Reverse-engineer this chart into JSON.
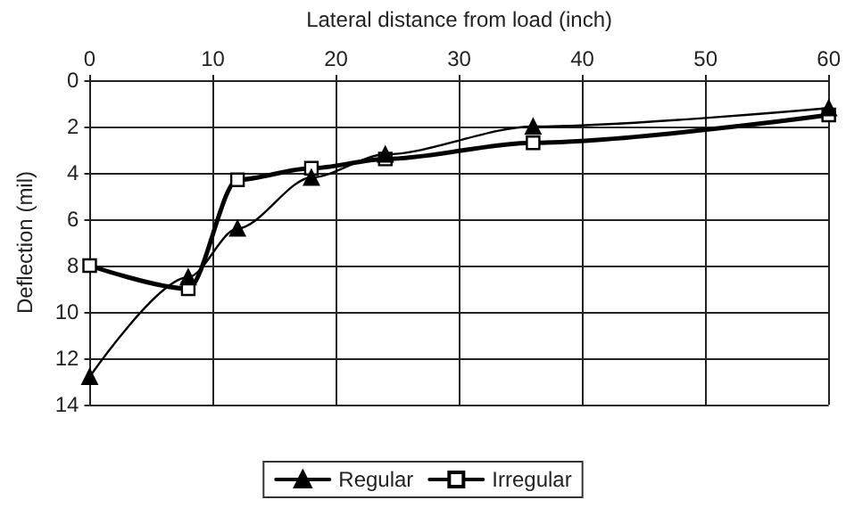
{
  "chart_data": {
    "type": "line",
    "xlabel": "Lateral distance from load (inch)",
    "ylabel": "Deflection (mil)",
    "xlim": [
      0,
      60
    ],
    "xticks": [
      0,
      10,
      20,
      30,
      40,
      50,
      60
    ],
    "ylim": [
      14,
      0
    ],
    "yticks": [
      0,
      2,
      4,
      6,
      8,
      10,
      12,
      14
    ],
    "grid": true,
    "legend": "bottom",
    "series": [
      {
        "name": "Regular",
        "color": "#000000",
        "marker": "triangle",
        "x": [
          0,
          8,
          12,
          18,
          24,
          36,
          60
        ],
        "values": [
          12.8,
          8.5,
          6.4,
          4.2,
          3.2,
          2.0,
          1.2
        ]
      },
      {
        "name": "Irregular",
        "color": "#000000",
        "marker": "square",
        "x": [
          0,
          8,
          12,
          18,
          24,
          36,
          60
        ],
        "values": [
          8,
          9,
          4.3,
          3.8,
          3.4,
          2.7,
          1.5
        ]
      }
    ]
  }
}
